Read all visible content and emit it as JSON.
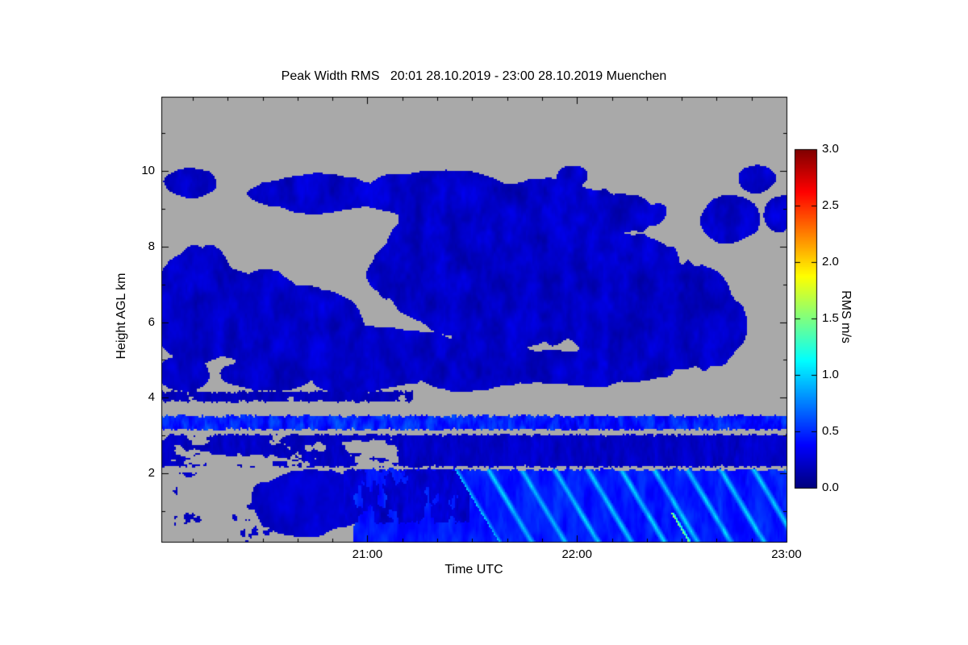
{
  "chart_data": {
    "type": "heatmap",
    "title": "Peak Width RMS   20:01 28.10.2019 - 23:00 28.10.2019 Muenchen",
    "xlabel": "Time UTC",
    "ylabel": "Height AGL km",
    "colorbar_label": "RMS m/s",
    "x_start_label": "20:01",
    "x_range_minutes": [
      0,
      179
    ],
    "x_ticks": [
      {
        "label": "21:00",
        "minutes": 59
      },
      {
        "label": "22:00",
        "minutes": 119
      },
      {
        "label": "23:00",
        "minutes": 179
      }
    ],
    "x_minor_tick_interval_minutes": 10,
    "y_range_km": [
      0.19,
      11.96
    ],
    "y_ticks": [
      {
        "label": "2",
        "km": 2
      },
      {
        "label": "4",
        "km": 4
      },
      {
        "label": "6",
        "km": 6
      },
      {
        "label": "8",
        "km": 8
      },
      {
        "label": "10",
        "km": 10
      }
    ],
    "y_minor_tick_interval_km": 1,
    "colorbar_range": [
      0.0,
      3.0
    ],
    "colorbar_ticks": [
      {
        "label": "0.0",
        "value": 0.0
      },
      {
        "label": "0.5",
        "value": 0.5
      },
      {
        "label": "1.0",
        "value": 1.0
      },
      {
        "label": "1.5",
        "value": 1.5
      },
      {
        "label": "2.0",
        "value": 2.0
      },
      {
        "label": "2.5",
        "value": 2.5
      },
      {
        "label": "3.0",
        "value": 3.0
      }
    ],
    "colormap": "jet",
    "nodata_color": "#A9A9A9",
    "background_color": "#FFFFFF",
    "axis_color": "#000000",
    "regions": [
      {
        "id": "upper_cloud",
        "type": "cloud",
        "seed": 1,
        "ellipses": [
          [
            8,
            9.7,
            9,
            0.45
          ],
          [
            45,
            9.4,
            22,
            0.55
          ],
          [
            80,
            9.35,
            28,
            0.7
          ],
          [
            105,
            8.8,
            42,
            1.1
          ],
          [
            95,
            7.5,
            38,
            2.1
          ],
          [
            120,
            7.0,
            36,
            1.9
          ],
          [
            135,
            6.3,
            26,
            1.7
          ],
          [
            10,
            6.5,
            13,
            1.6
          ],
          [
            26,
            6.2,
            16,
            1.3
          ],
          [
            42,
            5.8,
            18,
            1.2
          ],
          [
            62,
            5.1,
            26,
            0.9
          ],
          [
            88,
            4.9,
            22,
            0.75
          ],
          [
            120,
            4.8,
            32,
            0.55
          ],
          [
            150,
            6.0,
            20,
            1.5
          ],
          [
            163,
            8.7,
            9,
            0.65
          ],
          [
            171,
            9.8,
            6,
            0.4
          ],
          [
            118,
            9.85,
            5,
            0.35
          ],
          [
            177,
            8.9,
            5,
            0.6
          ],
          [
            6,
            4.6,
            8,
            0.5
          ],
          [
            30,
            4.6,
            14,
            0.45
          ],
          [
            55,
            4.5,
            12,
            0.4
          ]
        ],
        "edge_noise": 0.45,
        "threshold": 0.18,
        "value_base": 0.07,
        "value_noise": 0.28
      },
      {
        "id": "layer_4km",
        "type": "band",
        "seed": 7,
        "t": [
          0,
          72
        ],
        "h": [
          3.9,
          4.16
        ],
        "coverage": 0.8,
        "value_base": 0.1,
        "value_noise": 0.15,
        "noise_scale": [
          0.35,
          3.0
        ]
      },
      {
        "id": "band_3p3km",
        "type": "band",
        "seed": 13,
        "t": [
          0,
          179
        ],
        "h": [
          3.16,
          3.52
        ],
        "coverage": 0.94,
        "value_base": 0.18,
        "value_noise": 0.55,
        "noise_scale": [
          1.1,
          5.0
        ]
      },
      {
        "id": "layer_2to3km_left",
        "type": "band",
        "seed": 19,
        "t": [
          0,
          68
        ],
        "h": [
          2.18,
          3.02
        ],
        "coverage": 0.5,
        "value_base": 0.1,
        "value_noise": 0.2,
        "noise_scale": [
          0.18,
          3.0
        ]
      },
      {
        "id": "layer_2to3km_right",
        "type": "band",
        "seed": 23,
        "t": [
          68,
          179
        ],
        "h": [
          2.18,
          3.02
        ],
        "coverage": 0.88,
        "value_base": 0.1,
        "value_noise": 0.22,
        "noise_scale": [
          0.45,
          2.5
        ]
      },
      {
        "id": "bottom_specks_left",
        "type": "band",
        "seed": 29,
        "t": [
          0,
          32
        ],
        "h": [
          0.19,
          2.05
        ],
        "coverage": 0.22,
        "value_base": 0.12,
        "value_noise": 0.15,
        "noise_scale": [
          0.25,
          2.5
        ]
      },
      {
        "id": "bottom_mass",
        "type": "cloud",
        "seed": 31,
        "ellipses": [
          [
            42,
            1.2,
            19,
            1.05
          ]
        ],
        "edge_noise": 0.5,
        "threshold": 0.2,
        "value_base": 0.12,
        "value_noise": 0.22
      },
      {
        "id": "bottom_base",
        "type": "base",
        "seed": 37,
        "t_start": 52,
        "h_top": 2.1,
        "slant_min_per_km": 2.0,
        "coverage": 0.97,
        "value_base": 0.3,
        "value_noise": 0.3
      },
      {
        "id": "bottom_clutter",
        "type": "band",
        "seed": 41,
        "t": [
          52,
          88
        ],
        "h": [
          0.7,
          2.1
        ],
        "coverage": 0.6,
        "value_base": 0.1,
        "value_noise": 0.25,
        "noise_scale": [
          0.3,
          1.5
        ]
      },
      {
        "id": "fall_streaks",
        "type": "streaks",
        "seed": 43,
        "t_start": 84,
        "h_top": 2.12,
        "period_min": 9.5,
        "slope_min_per_km": 6.5,
        "core_width_min": 1.3,
        "value_base": 0.45,
        "value_peak": 1.15
      },
      {
        "id": "bright_streak",
        "type": "streaks",
        "seed": 47,
        "t_start": 146,
        "t_end": 153,
        "h_top": 0.95,
        "period_min": 40,
        "slope_min_per_km": 6.5,
        "core_width_min": 0.8,
        "value_base": 0.9,
        "value_peak": 1.85
      }
    ]
  }
}
